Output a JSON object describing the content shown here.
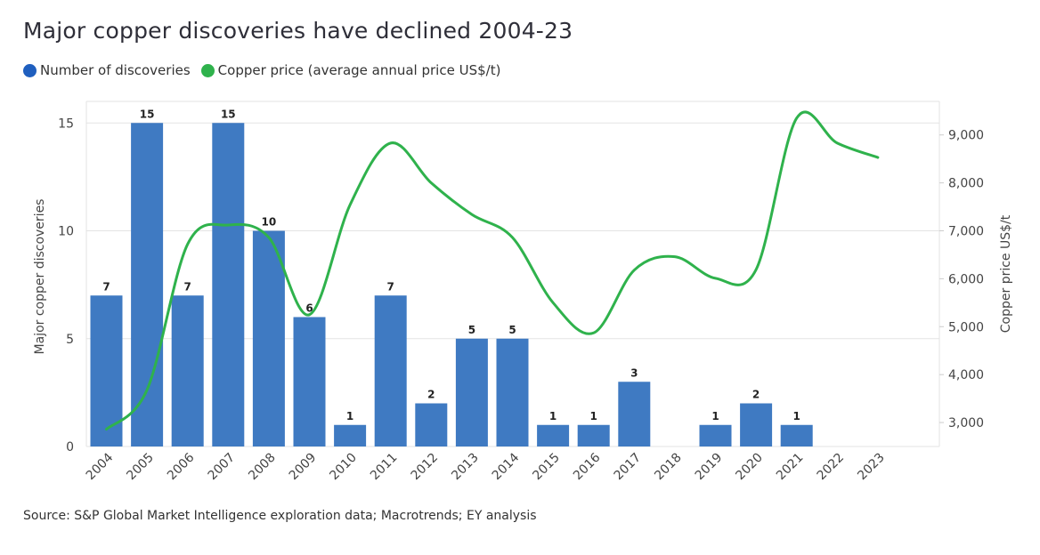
{
  "title": "Major copper discoveries have declined 2004-23",
  "legend": {
    "series1": "Number of discoveries",
    "series2": "Copper price (average annual price US$/t)"
  },
  "source": "Source: S&P Global Market Intelligence exploration data; Macrotrends; EY analysis",
  "colors": {
    "bars": "#3f7ac2",
    "line": "#2fb24c",
    "grid": "#e3e3e3"
  },
  "chart_data": {
    "type": "bar",
    "title": "Major copper discoveries have declined 2004-23",
    "categories": [
      "2004",
      "2005",
      "2006",
      "2007",
      "2008",
      "2009",
      "2010",
      "2011",
      "2012",
      "2013",
      "2014",
      "2015",
      "2016",
      "2017",
      "2018",
      "2019",
      "2020",
      "2021",
      "2022",
      "2023"
    ],
    "series": [
      {
        "name": "Number of discoveries",
        "type": "bar",
        "axis": "left",
        "values": [
          7,
          15,
          7,
          15,
          10,
          6,
          1,
          7,
          2,
          5,
          5,
          1,
          1,
          3,
          null,
          1,
          2,
          1,
          null,
          null
        ],
        "labels": [
          "7",
          "15",
          "7",
          "15",
          "10",
          "6",
          "1",
          "7",
          "2",
          "5",
          "5",
          "1",
          "1",
          "3",
          "",
          "1",
          "2",
          "1",
          "",
          ""
        ]
      },
      {
        "name": "Copper price (average annual price US$/t)",
        "type": "line",
        "axis": "right",
        "values": [
          2860,
          3680,
          6720,
          7120,
          6860,
          5250,
          7540,
          8830,
          8000,
          7340,
          6860,
          5500,
          4870,
          6180,
          6460,
          6010,
          6190,
          9350,
          8830,
          8530
        ]
      }
    ],
    "ylabel": "Major copper discoveries",
    "y2label": "Copper price US$/t",
    "ylim": [
      0,
      16
    ],
    "y2lim": [
      2500,
      9700
    ],
    "yticks": [
      "0",
      "5",
      "10",
      "15"
    ],
    "yticks_values": [
      0,
      5,
      10,
      15
    ],
    "y2ticks": [
      "3,000",
      "4,000",
      "5,000",
      "6,000",
      "7,000",
      "8,000",
      "9,000"
    ],
    "y2ticks_values": [
      3000,
      4000,
      5000,
      6000,
      7000,
      8000,
      9000
    ],
    "grid": true,
    "legend_position": "top-left"
  }
}
